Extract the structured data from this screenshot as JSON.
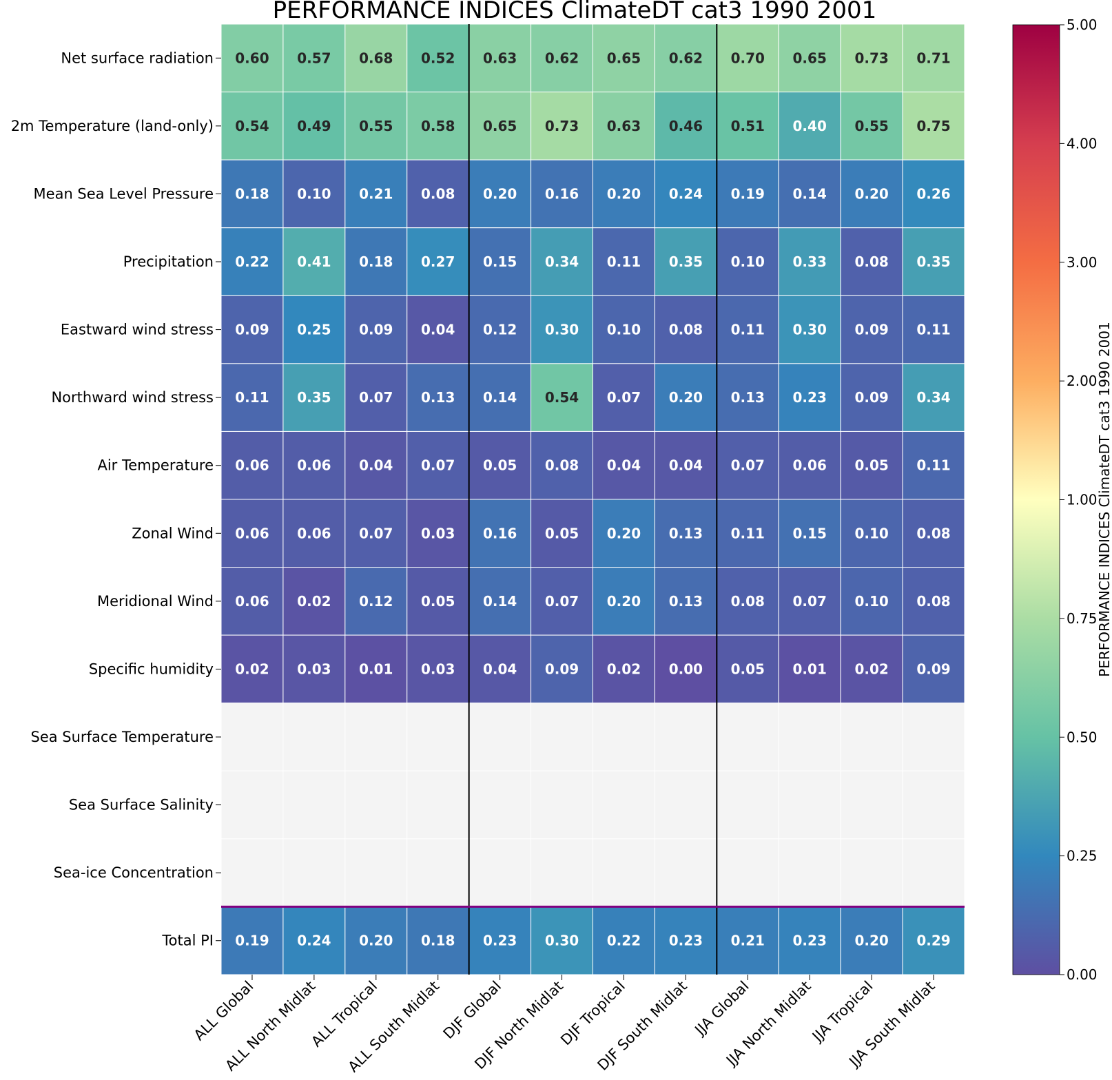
{
  "chart_data": {
    "type": "heatmap",
    "title": "PERFORMANCE INDICES ClimateDT cat3 1990 2001",
    "columns": [
      "ALL Global",
      "ALL North Midlat",
      "ALL Tropical",
      "ALL South Midlat",
      "DJF Global",
      "DJF North Midlat",
      "DJF Tropical",
      "DJF South Midlat",
      "JJA Global",
      "JJA North Midlat",
      "JJA Tropical",
      "JJA South Midlat"
    ],
    "rows": [
      "Net surface radiation",
      "2m Temperature (land-only)",
      "Mean Sea Level Pressure",
      "Precipitation",
      "Eastward wind stress",
      "Northward wind stress",
      "Air Temperature",
      "Zonal Wind",
      "Meridional Wind",
      "Specific humidity",
      "Sea Surface Temperature",
      "Sea Surface Salinity",
      "Sea-ice Concentration",
      "Total PI"
    ],
    "values": [
      [
        "0.60",
        "0.57",
        "0.68",
        "0.52",
        "0.63",
        "0.62",
        "0.65",
        "0.62",
        "0.70",
        "0.65",
        "0.73",
        "0.71"
      ],
      [
        "0.54",
        "0.49",
        "0.55",
        "0.58",
        "0.65",
        "0.73",
        "0.63",
        "0.46",
        "0.51",
        "0.40",
        "0.55",
        "0.75"
      ],
      [
        "0.18",
        "0.10",
        "0.21",
        "0.08",
        "0.20",
        "0.16",
        "0.20",
        "0.24",
        "0.19",
        "0.14",
        "0.20",
        "0.26"
      ],
      [
        "0.22",
        "0.41",
        "0.18",
        "0.27",
        "0.15",
        "0.34",
        "0.11",
        "0.35",
        "0.10",
        "0.33",
        "0.08",
        "0.35"
      ],
      [
        "0.09",
        "0.25",
        "0.09",
        "0.04",
        "0.12",
        "0.30",
        "0.10",
        "0.08",
        "0.11",
        "0.30",
        "0.09",
        "0.11"
      ],
      [
        "0.11",
        "0.35",
        "0.07",
        "0.13",
        "0.14",
        "0.54",
        "0.07",
        "0.20",
        "0.13",
        "0.23",
        "0.09",
        "0.34"
      ],
      [
        "0.06",
        "0.06",
        "0.04",
        "0.07",
        "0.05",
        "0.08",
        "0.04",
        "0.04",
        "0.07",
        "0.06",
        "0.05",
        "0.11"
      ],
      [
        "0.06",
        "0.06",
        "0.07",
        "0.03",
        "0.16",
        "0.05",
        "0.20",
        "0.13",
        "0.11",
        "0.15",
        "0.10",
        "0.08"
      ],
      [
        "0.06",
        "0.02",
        "0.12",
        "0.05",
        "0.14",
        "0.07",
        "0.20",
        "0.13",
        "0.08",
        "0.07",
        "0.10",
        "0.08"
      ],
      [
        "0.02",
        "0.03",
        "0.01",
        "0.03",
        "0.04",
        "0.09",
        "0.02",
        "0.00",
        "0.05",
        "0.01",
        "0.02",
        "0.09"
      ],
      [
        null,
        null,
        null,
        null,
        null,
        null,
        null,
        null,
        null,
        null,
        null,
        null
      ],
      [
        null,
        null,
        null,
        null,
        null,
        null,
        null,
        null,
        null,
        null,
        null,
        null
      ],
      [
        null,
        null,
        null,
        null,
        null,
        null,
        null,
        null,
        null,
        null,
        null,
        null
      ],
      [
        "0.19",
        "0.24",
        "0.20",
        "0.18",
        "0.23",
        "0.30",
        "0.22",
        "0.23",
        "0.21",
        "0.23",
        "0.20",
        "0.29"
      ]
    ],
    "missing_color": "#f4f4f4",
    "separator_color": "#800080",
    "colorbar": {
      "label": "PERFORMANCE INDICES ClimateDT cat3 1990 2001",
      "ticks": [
        "0.00",
        "0.25",
        "0.50",
        "0.75",
        "1.00",
        "2.00",
        "3.00",
        "4.00",
        "5.00"
      ],
      "colors": [
        "#5e4fa2",
        "#3288bd",
        "#66c2a5",
        "#abdda4",
        "#ffffbf",
        "#fdae61",
        "#f46d43",
        "#d53e4f",
        "#9e0142"
      ]
    }
  }
}
